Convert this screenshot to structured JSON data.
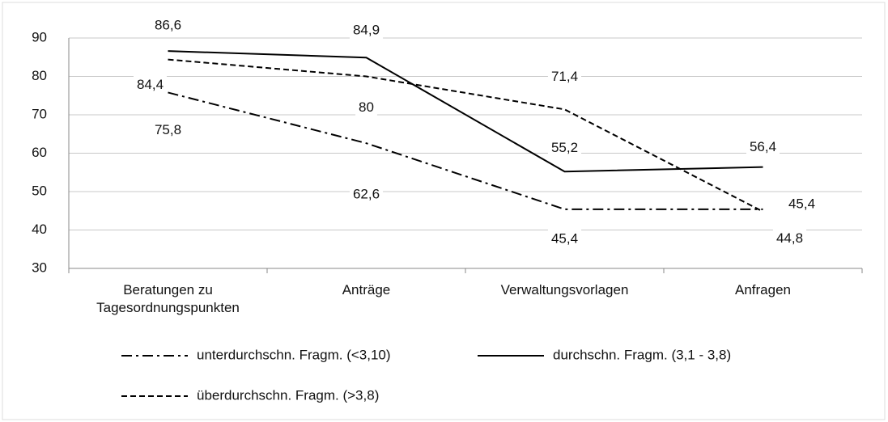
{
  "chart_data": {
    "type": "line",
    "categories": [
      "Beratungen zu Tagesordnungspunkten",
      "Anträge",
      "Verwaltungsvorlagen",
      "Anfragen"
    ],
    "series": [
      {
        "name": "unterdurchschn. Fragm. (<3,10)",
        "color": "#000000",
        "line_style": "dash-dot",
        "values": [
          75.8,
          62.6,
          45.4,
          45.4
        ],
        "value_labels": [
          "75,8",
          "62,6",
          "45,4",
          "45,4"
        ]
      },
      {
        "name": "durchschn. Fragm. (3,1 - 3,8)",
        "color": "#000000",
        "line_style": "solid",
        "values": [
          86.6,
          84.9,
          55.2,
          56.4
        ],
        "value_labels": [
          "86,6",
          "84,9",
          "55,2",
          "56,4"
        ]
      },
      {
        "name": "überdurchschn. Fragm. (>3,8)",
        "color": "#000000",
        "line_style": "dashed",
        "values": [
          84.4,
          80,
          71.4,
          44.8
        ],
        "value_labels": [
          "84,4",
          "80",
          "71,4",
          "44,8"
        ]
      }
    ],
    "ylim": [
      30,
      90
    ],
    "yticks": [
      30,
      40,
      50,
      60,
      70,
      80,
      90
    ],
    "grid": true,
    "legend": "bottom"
  }
}
